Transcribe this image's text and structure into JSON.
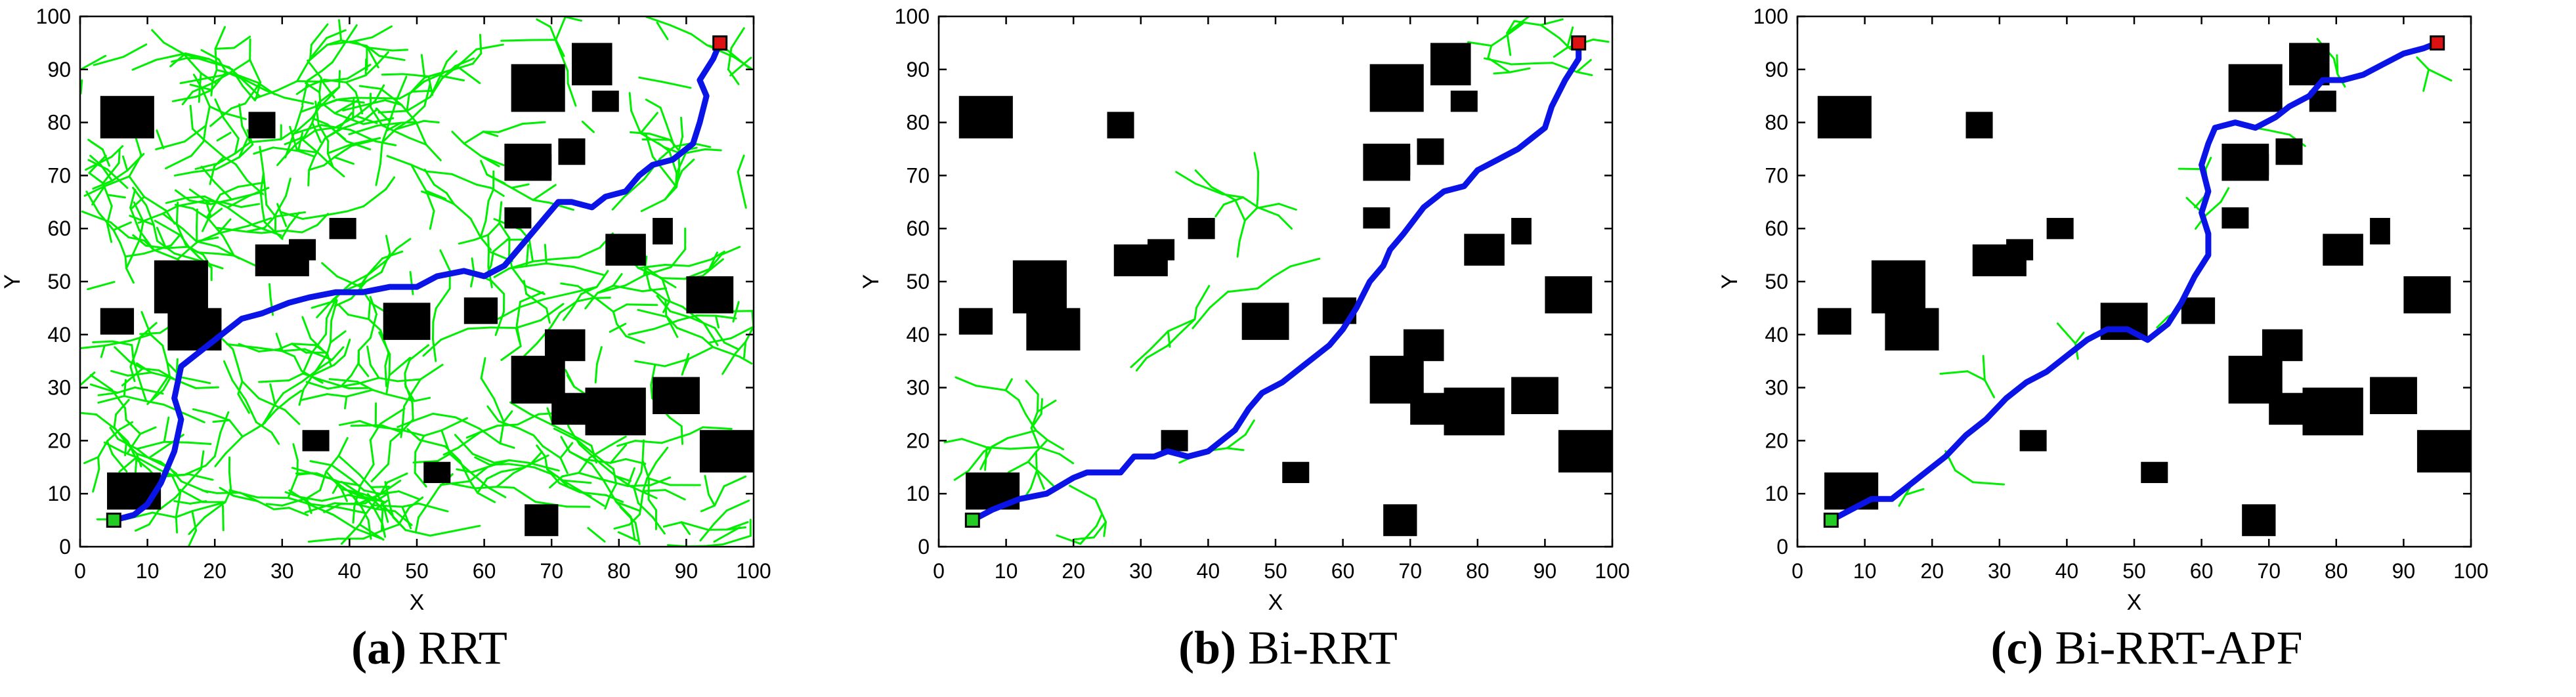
{
  "figure": {
    "colors": {
      "obstacle": "#000000",
      "tree": "#00ee00",
      "path": "#0a14e6",
      "start": "#22cc22",
      "goal": "#dd1111",
      "axis": "#000000",
      "background": "#ffffff"
    },
    "panels": [
      {
        "id": "a",
        "caption_label": "(a)",
        "caption_text": "RRT",
        "chart_data": {
          "type": "scatter",
          "xlabel": "X",
          "ylabel": "Y",
          "xlim": [
            0,
            100
          ],
          "ylim": [
            0,
            100
          ],
          "xticks": [
            0,
            10,
            20,
            30,
            40,
            50,
            60,
            70,
            80,
            90,
            100
          ],
          "yticks": [
            0,
            10,
            20,
            30,
            40,
            50,
            60,
            70,
            80,
            90,
            100
          ],
          "grid": false,
          "start": [
            5,
            5
          ],
          "goal": [
            95,
            95
          ],
          "path": [
            [
              5,
              5
            ],
            [
              8,
              6
            ],
            [
              10,
              8
            ],
            [
              12,
              12
            ],
            [
              14,
              18
            ],
            [
              15,
              24
            ],
            [
              14,
              28
            ],
            [
              15,
              34
            ],
            [
              17,
              36
            ],
            [
              21,
              40
            ],
            [
              24,
              43
            ],
            [
              27,
              44
            ],
            [
              31,
              46
            ],
            [
              34,
              47
            ],
            [
              38,
              48
            ],
            [
              42,
              48
            ],
            [
              46,
              49
            ],
            [
              50,
              49
            ],
            [
              53,
              51
            ],
            [
              57,
              52
            ],
            [
              60,
              51
            ],
            [
              63,
              53
            ],
            [
              65,
              56
            ],
            [
              67,
              59
            ],
            [
              69,
              62
            ],
            [
              71,
              65
            ],
            [
              73,
              65
            ],
            [
              76,
              64
            ],
            [
              78,
              66
            ],
            [
              81,
              67
            ],
            [
              83,
              70
            ],
            [
              85,
              72
            ],
            [
              88,
              73
            ],
            [
              91,
              76
            ],
            [
              92,
              80
            ],
            [
              93,
              85
            ],
            [
              92,
              88
            ],
            [
              94,
              92
            ],
            [
              95,
              95
            ]
          ],
          "tree_density": "dense"
        }
      },
      {
        "id": "b",
        "caption_label": "(b)",
        "caption_text": "Bi-RRT",
        "chart_data": {
          "type": "scatter",
          "xlabel": "X",
          "ylabel": "Y",
          "xlim": [
            0,
            100
          ],
          "ylim": [
            0,
            100
          ],
          "xticks": [
            0,
            10,
            20,
            30,
            40,
            50,
            60,
            70,
            80,
            90,
            100
          ],
          "yticks": [
            0,
            10,
            20,
            30,
            40,
            50,
            60,
            70,
            80,
            90,
            100
          ],
          "grid": false,
          "start": [
            5,
            5
          ],
          "goal": [
            95,
            95
          ],
          "path": [
            [
              5,
              5
            ],
            [
              8,
              7
            ],
            [
              12,
              9
            ],
            [
              16,
              10
            ],
            [
              20,
              13
            ],
            [
              22,
              14
            ],
            [
              27,
              14
            ],
            [
              29,
              17
            ],
            [
              32,
              17
            ],
            [
              34,
              18
            ],
            [
              37,
              17
            ],
            [
              40,
              18
            ],
            [
              42,
              20
            ],
            [
              44,
              22
            ],
            [
              46,
              26
            ],
            [
              48,
              29
            ],
            [
              51,
              31
            ],
            [
              54,
              34
            ],
            [
              56,
              36
            ],
            [
              58,
              38
            ],
            [
              60,
              41
            ],
            [
              62,
              45
            ],
            [
              64,
              50
            ],
            [
              66,
              53
            ],
            [
              67,
              56
            ],
            [
              69,
              59
            ],
            [
              72,
              64
            ],
            [
              75,
              67
            ],
            [
              78,
              68
            ],
            [
              80,
              71
            ],
            [
              83,
              73
            ],
            [
              86,
              75
            ],
            [
              88,
              77
            ],
            [
              90,
              79
            ],
            [
              91,
              83
            ],
            [
              93,
              88
            ],
            [
              95,
              92
            ],
            [
              95,
              95
            ]
          ],
          "tree_density": "sparse"
        }
      },
      {
        "id": "c",
        "caption_label": "(c)",
        "caption_text": "Bi-RRT-APF",
        "chart_data": {
          "type": "scatter",
          "xlabel": "X",
          "ylabel": "Y",
          "xlim": [
            0,
            100
          ],
          "ylim": [
            0,
            100
          ],
          "xticks": [
            0,
            10,
            20,
            30,
            40,
            50,
            60,
            70,
            80,
            90,
            100
          ],
          "yticks": [
            0,
            10,
            20,
            30,
            40,
            50,
            60,
            70,
            80,
            90,
            100
          ],
          "grid": false,
          "start": [
            5,
            5
          ],
          "goal": [
            95,
            95
          ],
          "path": [
            [
              5,
              5
            ],
            [
              8,
              7
            ],
            [
              11,
              9
            ],
            [
              14,
              9
            ],
            [
              16,
              11
            ],
            [
              19,
              14
            ],
            [
              22,
              17
            ],
            [
              25,
              21
            ],
            [
              28,
              24
            ],
            [
              31,
              28
            ],
            [
              34,
              31
            ],
            [
              37,
              33
            ],
            [
              40,
              36
            ],
            [
              43,
              39
            ],
            [
              46,
              41
            ],
            [
              49,
              41
            ],
            [
              52,
              39
            ],
            [
              55,
              42
            ],
            [
              57,
              46
            ],
            [
              59,
              51
            ],
            [
              61,
              55
            ],
            [
              61,
              59
            ],
            [
              60,
              63
            ],
            [
              61,
              67
            ],
            [
              60,
              72
            ],
            [
              61,
              76
            ],
            [
              62,
              79
            ],
            [
              65,
              80
            ],
            [
              68,
              79
            ],
            [
              71,
              81
            ],
            [
              73,
              83
            ],
            [
              76,
              85
            ],
            [
              78,
              88
            ],
            [
              81,
              88
            ],
            [
              84,
              89
            ],
            [
              87,
              91
            ],
            [
              90,
              93
            ],
            [
              93,
              94
            ],
            [
              95,
              95
            ]
          ],
          "tree_density": "minimal"
        }
      }
    ]
  }
}
